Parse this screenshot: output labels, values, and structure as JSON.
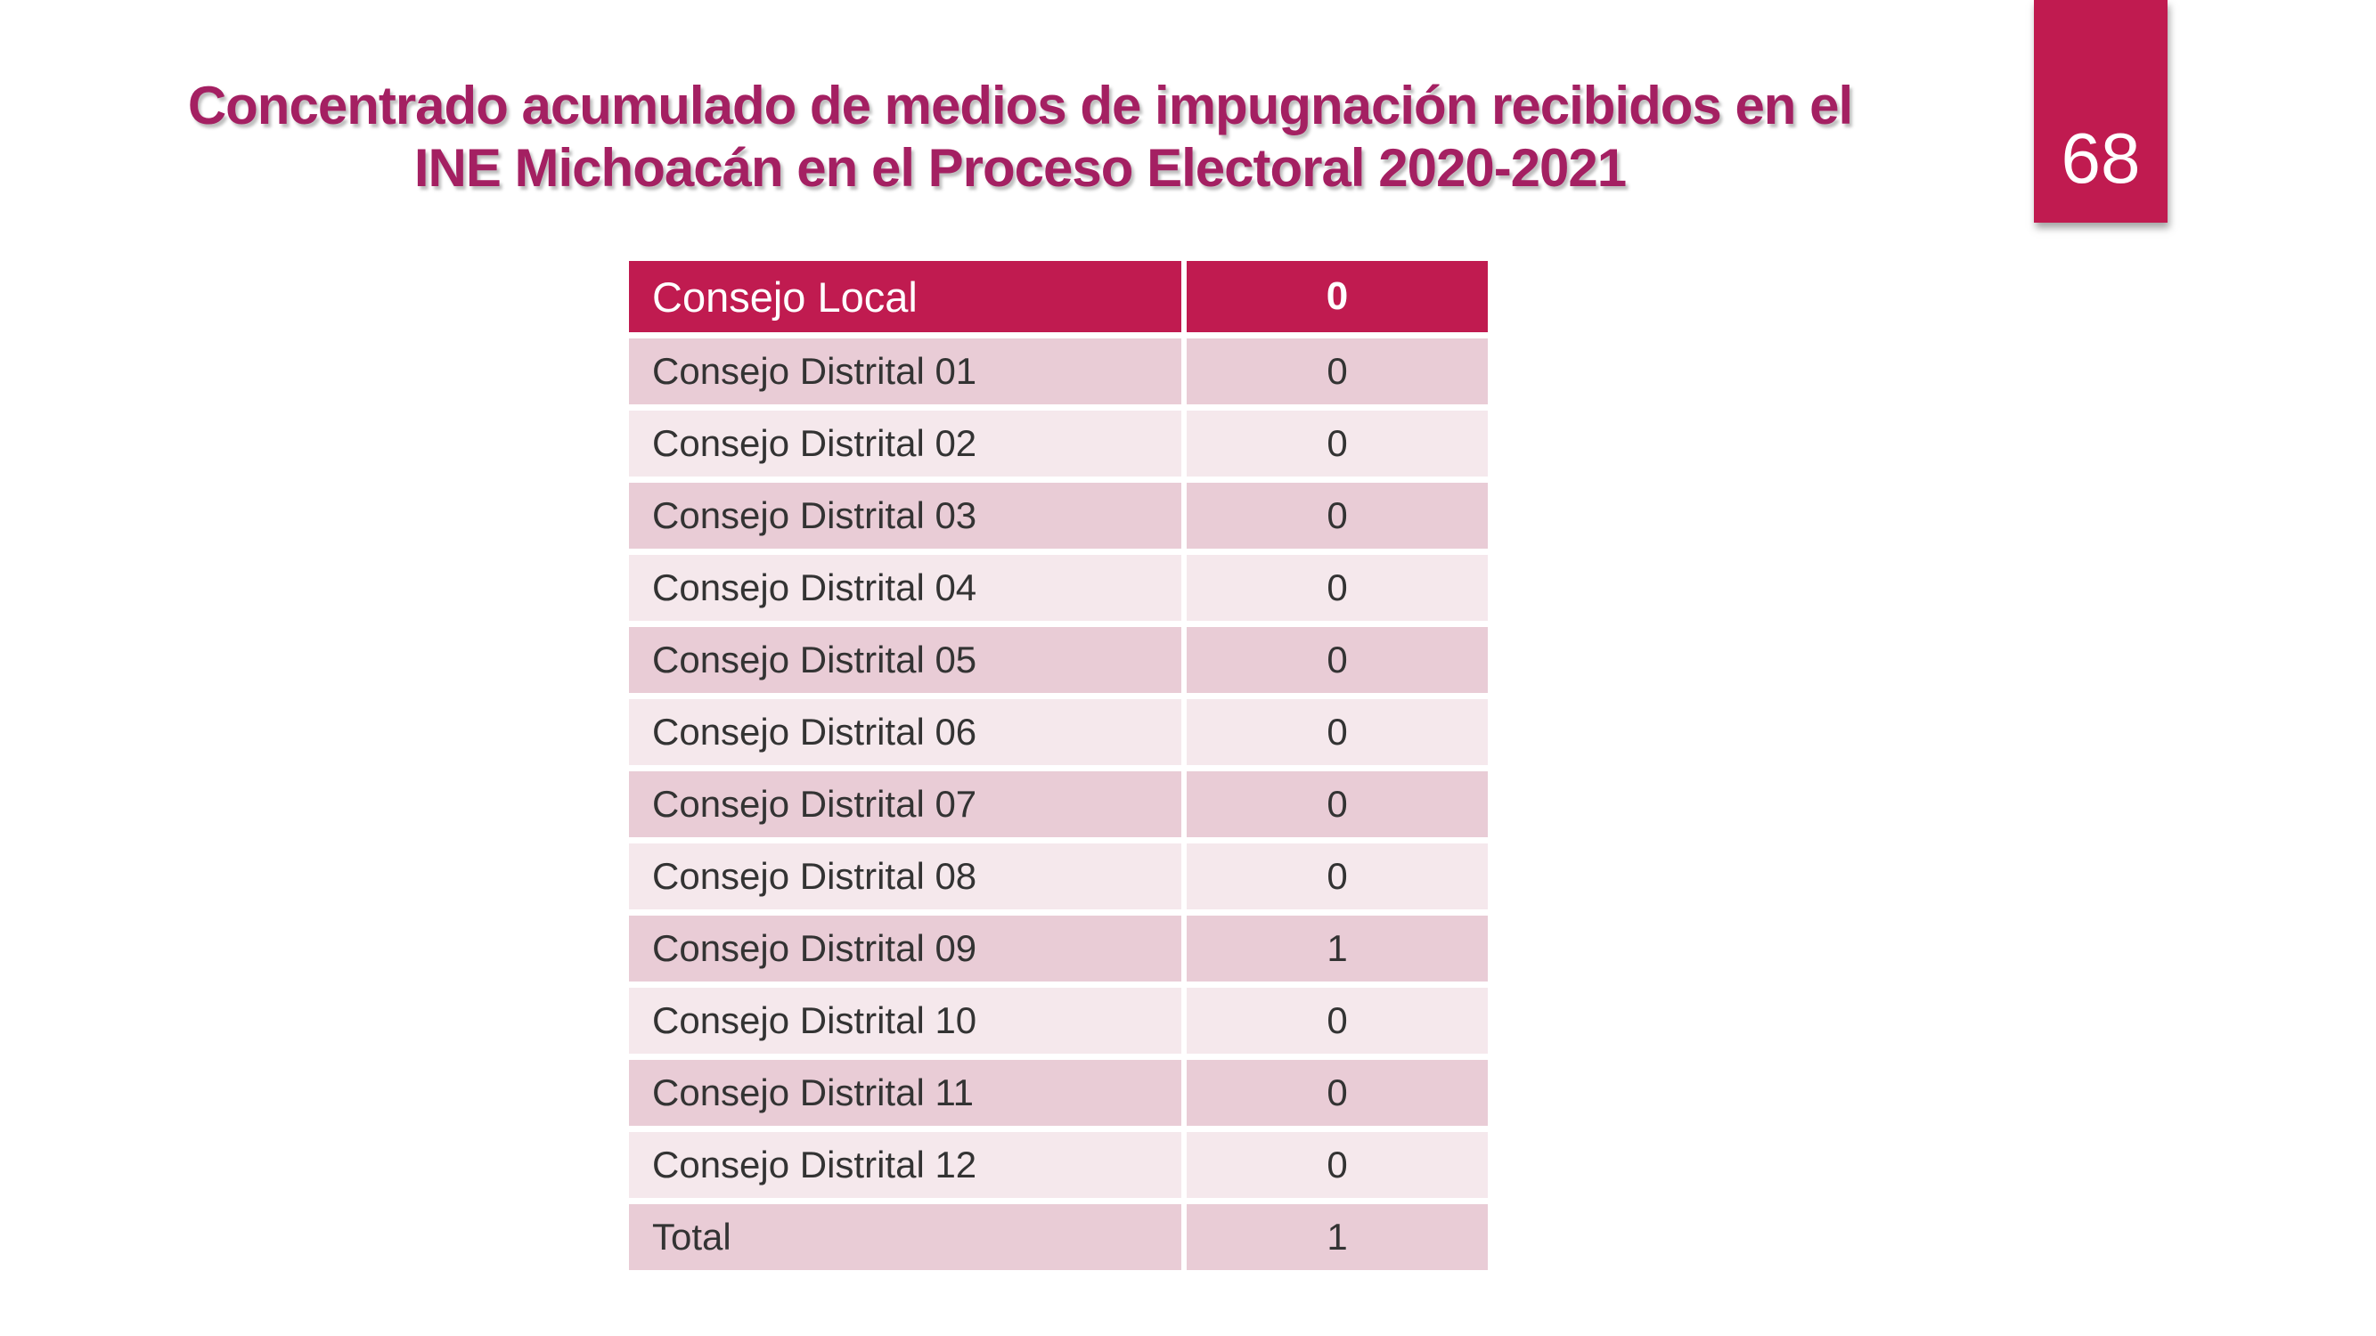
{
  "slide": {
    "page_number": "68",
    "title_line1": "Concentrado acumulado de medios de impugnación recibidos en el",
    "title_line2": "INE Michoacán en el Proceso Electoral 2020-2021"
  },
  "colors": {
    "accent": "#C01B50",
    "title_text": "#A42062",
    "row_band_dark": "#E9CCD6",
    "row_band_light": "#F5E8EC",
    "row_text": "#333333",
    "header_text": "#FFFFFF"
  },
  "table": {
    "header": {
      "label": "Consejo Local",
      "value": "0"
    },
    "rows": [
      {
        "label": "Consejo Distrital 01",
        "value": "0"
      },
      {
        "label": "Consejo Distrital 02",
        "value": "0"
      },
      {
        "label": "Consejo Distrital 03",
        "value": "0"
      },
      {
        "label": "Consejo Distrital 04",
        "value": "0"
      },
      {
        "label": "Consejo Distrital 05",
        "value": "0"
      },
      {
        "label": "Consejo Distrital 06",
        "value": "0"
      },
      {
        "label": "Consejo Distrital 07",
        "value": "0"
      },
      {
        "label": "Consejo Distrital 08",
        "value": "0"
      },
      {
        "label": "Consejo Distrital 09",
        "value": "1"
      },
      {
        "label": "Consejo Distrital 10",
        "value": "0"
      },
      {
        "label": "Consejo Distrital 11",
        "value": "0"
      },
      {
        "label": "Consejo Distrital 12",
        "value": "0"
      },
      {
        "label": "Total",
        "value": "1"
      }
    ]
  }
}
